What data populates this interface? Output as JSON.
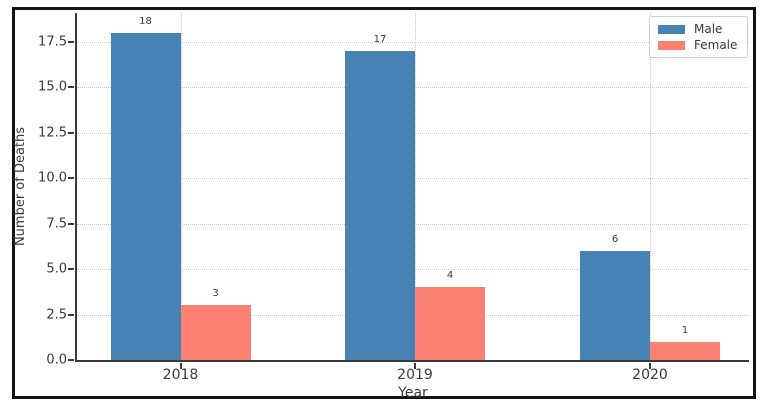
{
  "chart_data": {
    "type": "bar",
    "title": "",
    "xlabel": "Year",
    "ylabel": "Number of Deaths",
    "categories": [
      "2018",
      "2019",
      "2020"
    ],
    "series": [
      {
        "name": "Male",
        "color": "#4682B4",
        "values": [
          18,
          17,
          6
        ]
      },
      {
        "name": "Female",
        "color": "#FA8072",
        "values": [
          3,
          4,
          1
        ]
      }
    ],
    "ylim": [
      0,
      19.1
    ],
    "yticks": [
      0,
      2.5,
      5,
      7.5,
      10,
      12.5,
      15,
      17.5
    ],
    "ytick_labels": [
      "0.0",
      "2.5",
      "5.0",
      "7.5",
      "10.0",
      "12.5",
      "15.0",
      "17.5"
    ],
    "grid": true,
    "grid_style": "dotted",
    "legend_position": "upper right",
    "bar_value_labels": [
      [
        "18",
        "17",
        "6"
      ],
      [
        "3",
        "4",
        "1"
      ]
    ],
    "colors": {
      "male_bar": "#4682B4",
      "female_bar": "#FA8072",
      "axis": "#3a3a3a",
      "gridline": "#c9c9c9",
      "figure_border": "#141414",
      "background": "#ffffff"
    }
  }
}
